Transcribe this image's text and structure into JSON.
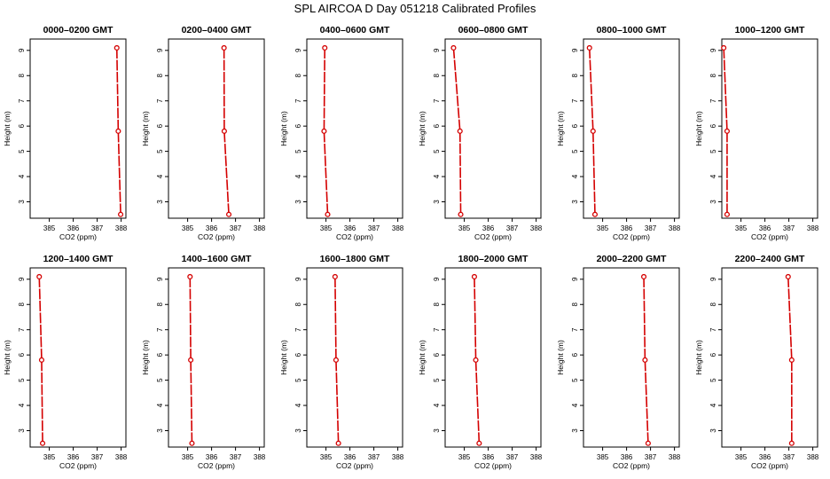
{
  "title": "SPL AIRCOA D  Day 051218  Calibrated Profiles",
  "chart_data": {
    "type": "line",
    "series_color": "#d40000",
    "xlabel": "CO2 (ppm)",
    "ylabel": "Height (m)",
    "xlim": [
      384.2,
      388.2
    ],
    "ylim": [
      2.35,
      9.45
    ],
    "xticks": [
      385,
      386,
      387,
      388
    ],
    "yticks": [
      3,
      4,
      5,
      6,
      7,
      8,
      9
    ],
    "grid": false,
    "panels": [
      {
        "title": "0000–0200 GMT",
        "points": [
          {
            "x": 387.82,
            "y": 9.1
          },
          {
            "x": 387.88,
            "y": 5.8
          },
          {
            "x": 387.98,
            "y": 2.5
          }
        ]
      },
      {
        "title": "0200–0400 GMT",
        "points": [
          {
            "x": 386.52,
            "y": 9.1
          },
          {
            "x": 386.53,
            "y": 5.8
          },
          {
            "x": 386.72,
            "y": 2.5
          }
        ]
      },
      {
        "title": "0400–0600 GMT",
        "points": [
          {
            "x": 384.95,
            "y": 9.1
          },
          {
            "x": 384.92,
            "y": 5.8
          },
          {
            "x": 385.07,
            "y": 2.5
          }
        ]
      },
      {
        "title": "0600–0800 GMT",
        "points": [
          {
            "x": 384.55,
            "y": 9.1
          },
          {
            "x": 384.82,
            "y": 5.8
          },
          {
            "x": 384.85,
            "y": 2.5
          }
        ]
      },
      {
        "title": "0800–1000 GMT",
        "points": [
          {
            "x": 384.45,
            "y": 9.1
          },
          {
            "x": 384.6,
            "y": 5.8
          },
          {
            "x": 384.68,
            "y": 2.5
          }
        ]
      },
      {
        "title": "1000–1200 GMT",
        "points": [
          {
            "x": 384.28,
            "y": 9.1
          },
          {
            "x": 384.42,
            "y": 5.8
          },
          {
            "x": 384.42,
            "y": 2.5
          }
        ]
      },
      {
        "title": "1200–1400 GMT",
        "points": [
          {
            "x": 384.58,
            "y": 9.1
          },
          {
            "x": 384.68,
            "y": 5.8
          },
          {
            "x": 384.72,
            "y": 2.5
          }
        ]
      },
      {
        "title": "1400–1600 GMT",
        "points": [
          {
            "x": 385.1,
            "y": 9.1
          },
          {
            "x": 385.13,
            "y": 5.8
          },
          {
            "x": 385.18,
            "y": 2.5
          }
        ]
      },
      {
        "title": "1600–1800 GMT",
        "points": [
          {
            "x": 385.38,
            "y": 9.1
          },
          {
            "x": 385.42,
            "y": 5.8
          },
          {
            "x": 385.52,
            "y": 2.5
          }
        ]
      },
      {
        "title": "1800–2000 GMT",
        "points": [
          {
            "x": 385.42,
            "y": 9.1
          },
          {
            "x": 385.48,
            "y": 5.8
          },
          {
            "x": 385.62,
            "y": 2.5
          }
        ]
      },
      {
        "title": "2000–2200 GMT",
        "points": [
          {
            "x": 386.72,
            "y": 9.1
          },
          {
            "x": 386.77,
            "y": 5.8
          },
          {
            "x": 386.9,
            "y": 2.5
          }
        ]
      },
      {
        "title": "2200–2400 GMT",
        "points": [
          {
            "x": 386.97,
            "y": 9.1
          },
          {
            "x": 387.12,
            "y": 5.8
          },
          {
            "x": 387.12,
            "y": 2.5
          }
        ]
      }
    ]
  }
}
